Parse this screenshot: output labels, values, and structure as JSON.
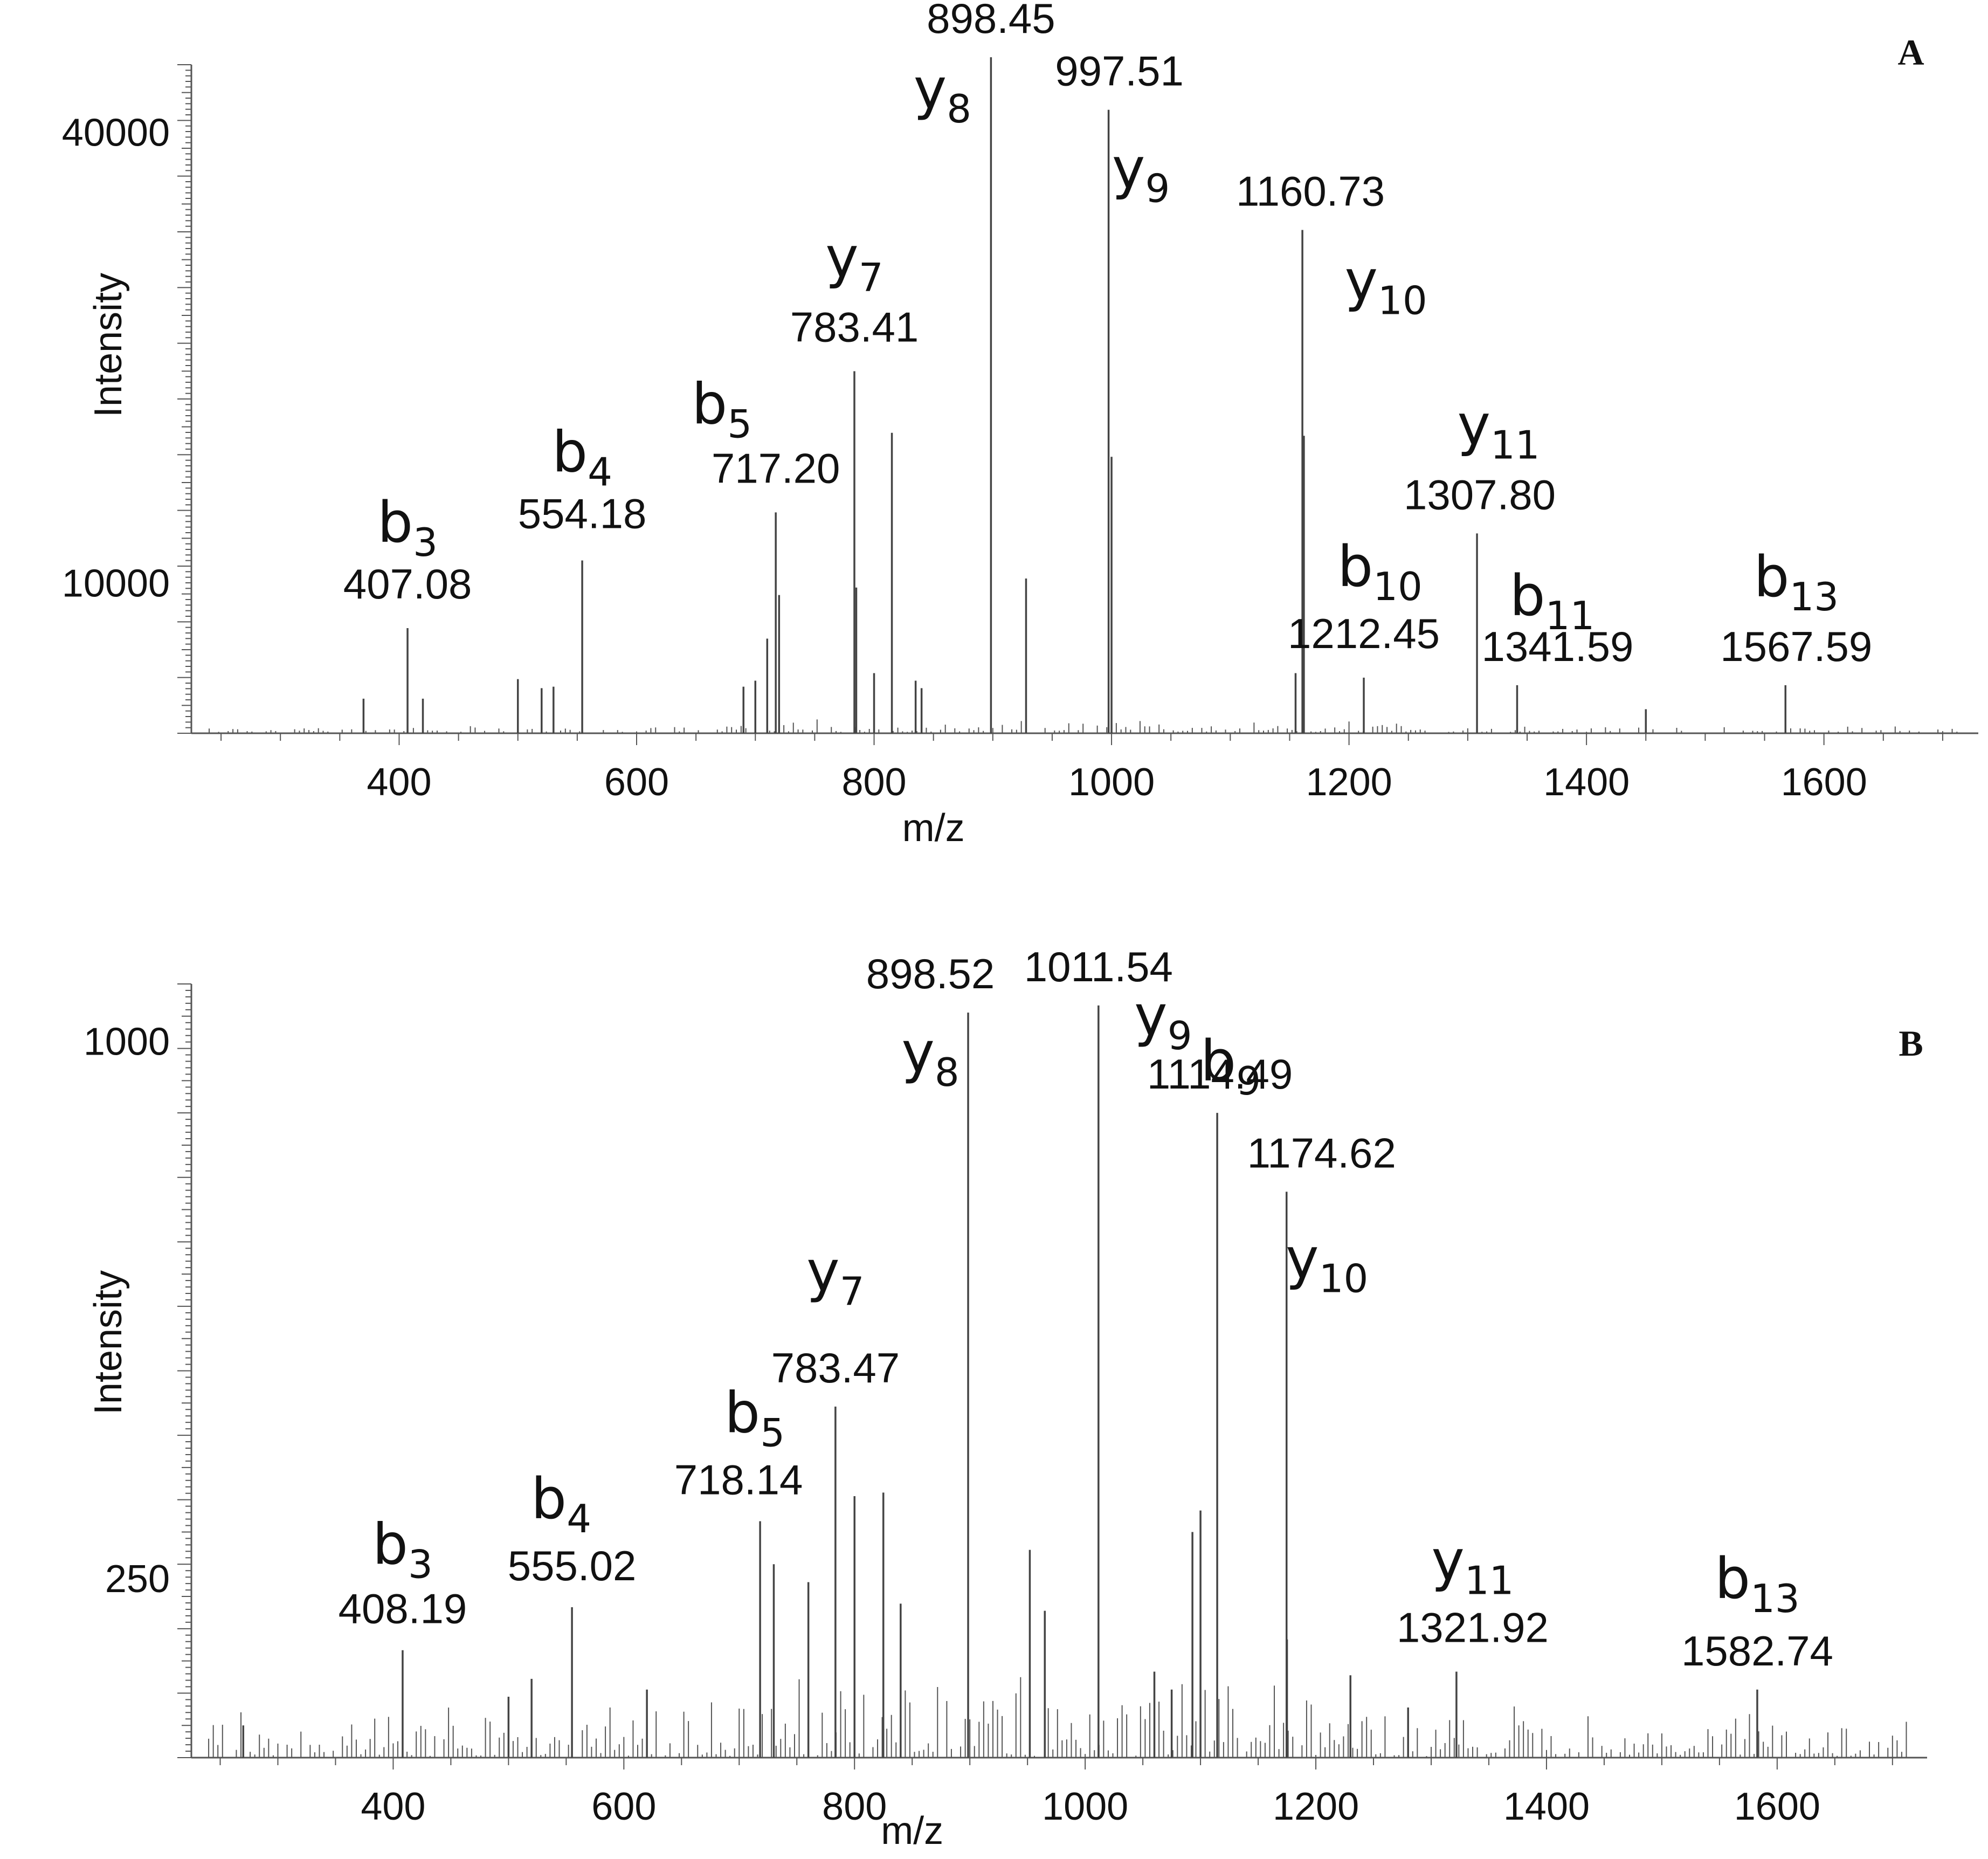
{
  "chart_data": [
    {
      "type": "bar",
      "subtype": "mass-spectrum",
      "panel_label": "A",
      "xlabel": "m/z",
      "ylabel": "Intensity",
      "xlim": [
        225,
        1730
      ],
      "ylim": [
        0,
        44500
      ],
      "xticks": [
        400,
        600,
        800,
        1000,
        1200,
        1400,
        1600
      ],
      "yticks": [
        10000,
        40000
      ],
      "yticks_labels": [
        "10000",
        "40000"
      ],
      "peaks": [
        {
          "mz": 407.08,
          "intensity": 7000,
          "ion": "b",
          "sub": "3",
          "label": "407.08"
        },
        {
          "mz": 554.18,
          "intensity": 11500,
          "ion": "b",
          "sub": "4",
          "label": "554.18"
        },
        {
          "mz": 717.2,
          "intensity": 14700,
          "ion": "b",
          "sub": "5",
          "label": "717.20"
        },
        {
          "mz": 783.41,
          "intensity": 24100,
          "ion": "y",
          "sub": "7",
          "label": "783.41"
        },
        {
          "mz": 898.45,
          "intensity": 45000,
          "ion": "y",
          "sub": "8",
          "label": "898.45"
        },
        {
          "mz": 997.51,
          "intensity": 41500,
          "ion": "y",
          "sub": "9",
          "label": "997.51"
        },
        {
          "mz": 1160.73,
          "intensity": 33500,
          "ion": "y",
          "sub": "10",
          "label": "1160.73"
        },
        {
          "mz": 1212.45,
          "intensity": 3700,
          "ion": "b",
          "sub": "10",
          "label": "1212.45"
        },
        {
          "mz": 1307.8,
          "intensity": 13300,
          "ion": "y",
          "sub": "11",
          "label": "1307.80"
        },
        {
          "mz": 1341.59,
          "intensity": 3200,
          "ion": "b",
          "sub": "11",
          "label": "1341.59"
        },
        {
          "mz": 1567.59,
          "intensity": 3200,
          "ion": "b",
          "sub": "13",
          "label": "1567.59"
        }
      ],
      "minor_peaks": [
        {
          "mz": 720,
          "intensity": 9200
        },
        {
          "mz": 785,
          "intensity": 9700
        },
        {
          "mz": 815,
          "intensity": 20000
        },
        {
          "mz": 928,
          "intensity": 10300
        },
        {
          "mz": 1000,
          "intensity": 18400
        },
        {
          "mz": 1162,
          "intensity": 19800
        },
        {
          "mz": 1155,
          "intensity": 4000
        },
        {
          "mz": 710,
          "intensity": 6300
        },
        {
          "mz": 700,
          "intensity": 3500
        },
        {
          "mz": 690,
          "intensity": 3100
        },
        {
          "mz": 800,
          "intensity": 4000
        },
        {
          "mz": 835,
          "intensity": 3500
        },
        {
          "mz": 840,
          "intensity": 3000
        },
        {
          "mz": 500,
          "intensity": 3600
        },
        {
          "mz": 520,
          "intensity": 3000
        },
        {
          "mz": 530,
          "intensity": 3100
        },
        {
          "mz": 370,
          "intensity": 2300
        },
        {
          "mz": 420,
          "intensity": 2300
        },
        {
          "mz": 1450,
          "intensity": 1600
        }
      ]
    },
    {
      "type": "bar",
      "subtype": "mass-spectrum",
      "panel_label": "B",
      "xlabel": "m/z",
      "ylabel": "Intensity",
      "xlim": [
        225,
        1730
      ],
      "ylim": [
        0,
        1080
      ],
      "xticks": [
        400,
        600,
        800,
        1000,
        1200,
        1400,
        1600
      ],
      "yticks": [
        250,
        1000
      ],
      "yticks_labels": [
        "250",
        "1000"
      ],
      "peaks": [
        {
          "mz": 408.19,
          "intensity": 150,
          "ion": "b",
          "sub": "3",
          "label": "408.19"
        },
        {
          "mz": 555.02,
          "intensity": 210,
          "ion": "b",
          "sub": "4",
          "label": "555.02"
        },
        {
          "mz": 718.14,
          "intensity": 330,
          "ion": "b",
          "sub": "5",
          "label": "718.14"
        },
        {
          "mz": 783.47,
          "intensity": 490,
          "ion": "y",
          "sub": "7",
          "label": "783.47"
        },
        {
          "mz": 898.52,
          "intensity": 1040,
          "ion": "y",
          "sub": "8",
          "label": "898.52"
        },
        {
          "mz": 1011.54,
          "intensity": 1050,
          "ion": "y",
          "sub": "9",
          "label": "1011.54"
        },
        {
          "mz": 1114.49,
          "intensity": 900,
          "ion": "b",
          "sub": "9",
          "label": "1114.49"
        },
        {
          "mz": 1174.62,
          "intensity": 790,
          "ion": "y",
          "sub": "10",
          "label": "1174.62"
        },
        {
          "mz": 1321.92,
          "intensity": 120,
          "ion": "y",
          "sub": "11",
          "label": "1321.92"
        },
        {
          "mz": 1582.74,
          "intensity": 95,
          "ion": "b",
          "sub": "13",
          "label": "1582.74"
        }
      ],
      "minor_peaks": [
        {
          "mz": 730,
          "intensity": 270
        },
        {
          "mz": 760,
          "intensity": 245
        },
        {
          "mz": 800,
          "intensity": 365
        },
        {
          "mz": 825,
          "intensity": 370
        },
        {
          "mz": 840,
          "intensity": 215
        },
        {
          "mz": 952,
          "intensity": 290
        },
        {
          "mz": 965,
          "intensity": 205
        },
        {
          "mz": 1093,
          "intensity": 315
        },
        {
          "mz": 1100,
          "intensity": 345
        },
        {
          "mz": 1175,
          "intensity": 165
        },
        {
          "mz": 1230,
          "intensity": 115
        },
        {
          "mz": 1280,
          "intensity": 70
        },
        {
          "mz": 1060,
          "intensity": 120
        },
        {
          "mz": 1075,
          "intensity": 95
        },
        {
          "mz": 520,
          "intensity": 110
        },
        {
          "mz": 500,
          "intensity": 85
        },
        {
          "mz": 620,
          "intensity": 95
        },
        {
          "mz": 270,
          "intensity": 45
        }
      ]
    }
  ]
}
